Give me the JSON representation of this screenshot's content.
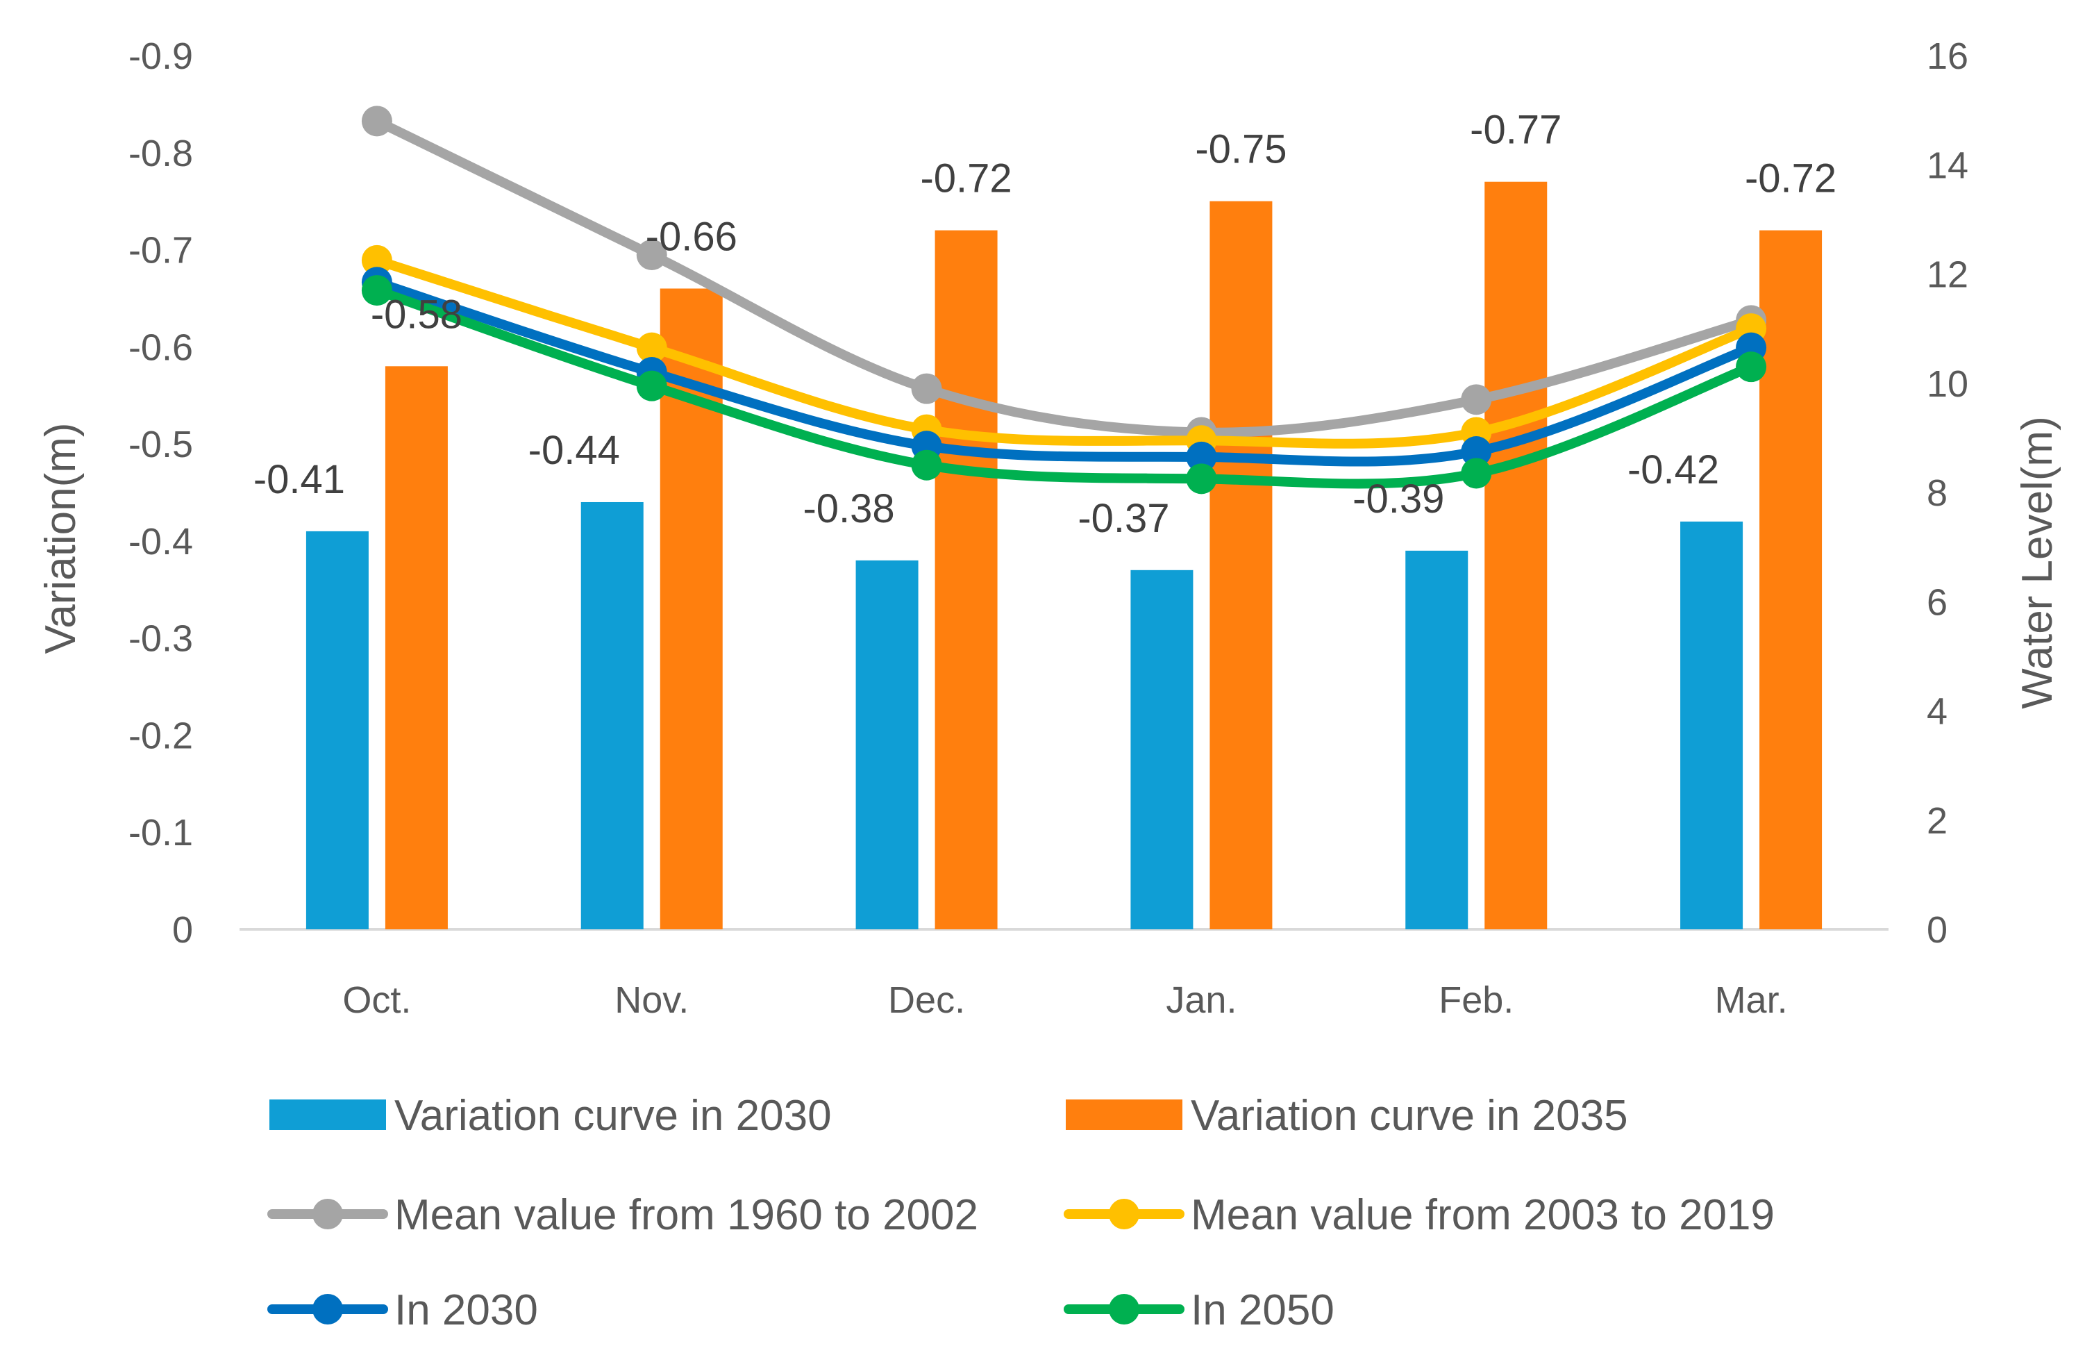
{
  "chart_data": {
    "type": "bar",
    "title": "",
    "xlabel": "",
    "ylabel": "Variation(m)",
    "y2label": "Water Level(m)",
    "categories": [
      "Oct.",
      "Nov.",
      "Dec.",
      "Jan.",
      "Feb.",
      "Mar."
    ],
    "ylim": [
      0,
      -0.9
    ],
    "yticks": [
      "-0.9",
      "-0.8",
      "-0.7",
      "-0.6",
      "-0.5",
      "-0.4",
      "-0.3",
      "-0.2",
      "-0.1",
      "0"
    ],
    "y2lim": [
      0,
      16
    ],
    "y2ticks": [
      "16",
      "14",
      "12",
      "10",
      "8",
      "6",
      "4",
      "2",
      "0"
    ],
    "grid": false,
    "legend_position": "bottom",
    "bar_series": [
      {
        "name": "Variation curve in 2030",
        "color": "#0F9ED5",
        "values": [
          -0.41,
          -0.44,
          -0.38,
          -0.37,
          -0.39,
          -0.42
        ],
        "labels": [
          "-0.41",
          "-0.44",
          "-0.38",
          "-0.37",
          "-0.39",
          "-0.42"
        ]
      },
      {
        "name": "Variation curve in 2035",
        "color": "#FF7F0E",
        "values": [
          -0.58,
          -0.66,
          -0.72,
          -0.75,
          -0.77,
          -0.72
        ],
        "labels": [
          "-0.58",
          "-0.66",
          "-0.72",
          "-0.75",
          "-0.77",
          "-0.72"
        ]
      }
    ],
    "line_series": [
      {
        "name": "Mean value from 1960 to 2002",
        "color": "#A5A5A5",
        "axis": "secondary",
        "values": [
          14.8,
          12.35,
          9.9,
          9.1,
          9.7,
          11.15
        ]
      },
      {
        "name": "Mean value from 2003 to 2019",
        "color": "#FFC000",
        "axis": "secondary",
        "values": [
          12.25,
          10.65,
          9.15,
          8.95,
          9.1,
          11.0
        ]
      },
      {
        "name": "In 2030",
        "color": "#0070C0",
        "axis": "secondary",
        "values": [
          11.85,
          10.2,
          8.85,
          8.65,
          8.75,
          10.65
        ]
      },
      {
        "name": "In 2050",
        "color": "#00B050",
        "axis": "secondary",
        "values": [
          11.7,
          9.95,
          8.5,
          8.25,
          8.35,
          10.3
        ]
      }
    ],
    "legend_order": [
      "Variation curve in 2030",
      "Variation curve in 2035",
      "Mean value from 1960 to 2002",
      "Mean value from 2003 to 2019",
      "In 2030",
      "In 2050"
    ]
  }
}
